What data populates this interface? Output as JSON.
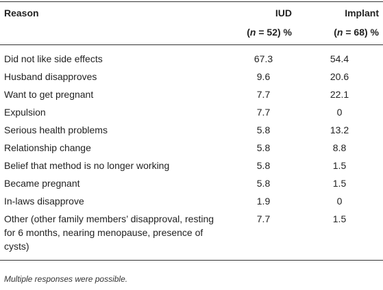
{
  "header": {
    "reason": "Reason",
    "columns": [
      {
        "name": "IUD",
        "open": "(",
        "n": "n",
        "rest": " = 52) %"
      },
      {
        "name": "Implant",
        "open": "(",
        "n": "n",
        "rest": " = 68) %"
      }
    ]
  },
  "table": {
    "rows": [
      [
        "Did not like side effects",
        "67.3",
        "54.4"
      ],
      [
        "Husband disapproves",
        "9.6",
        "20.6"
      ],
      [
        "Want to get pregnant",
        "7.7",
        "22.1"
      ],
      [
        "Expulsion",
        "7.7",
        "0"
      ],
      [
        "Serious health problems",
        "5.8",
        "13.2"
      ],
      [
        "Relationship change",
        "5.8",
        "8.8"
      ],
      [
        "Belief that method is no longer working",
        "5.8",
        "1.5"
      ],
      [
        "Became pregnant",
        "5.8",
        "1.5"
      ],
      [
        "In-laws disapprove",
        "1.9",
        "0"
      ],
      [
        "Other (other family members’ disapproval, resting for 6 months, nearing menopause, presence of cysts)",
        "7.7",
        "1.5"
      ]
    ]
  },
  "footnote": "Multiple responses were possible."
}
